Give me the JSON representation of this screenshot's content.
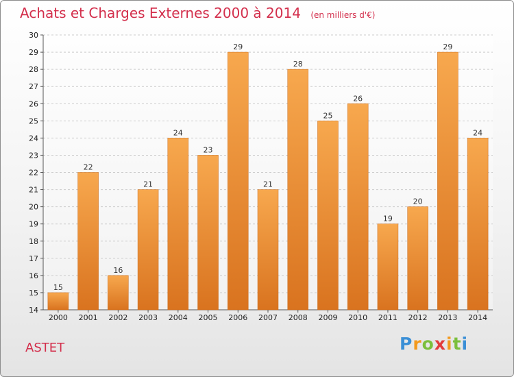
{
  "header": {
    "title": "Achats et Charges Externes 2000 à 2014",
    "subtitle": "(en milliers d'€)"
  },
  "footer": {
    "location": "ASTET",
    "logo": {
      "text": "Proxiti",
      "letters": [
        "P",
        "r",
        "o",
        "x",
        "i",
        "t",
        "i"
      ]
    }
  },
  "colors": {
    "title": "#d32f4c",
    "bar_light": "#f7a84e",
    "bar_dark": "#d9731f",
    "grid": "#cccccc"
  },
  "chart_data": {
    "type": "bar",
    "title": "Achats et Charges Externes 2000 à 2014",
    "subtitle": "(en milliers d'€)",
    "xlabel": "",
    "ylabel": "",
    "categories": [
      "2000",
      "2001",
      "2002",
      "2003",
      "2004",
      "2005",
      "2006",
      "2007",
      "2008",
      "2009",
      "2010",
      "2011",
      "2012",
      "2013",
      "2014"
    ],
    "values": [
      15,
      22,
      16,
      21,
      24,
      23,
      29,
      21,
      28,
      25,
      26,
      19,
      20,
      29,
      24
    ],
    "ylim": [
      14,
      30
    ],
    "yticks": [
      14,
      15,
      16,
      17,
      18,
      19,
      20,
      21,
      22,
      23,
      24,
      25,
      26,
      27,
      28,
      29,
      30
    ],
    "grid": true,
    "data_labels": true
  }
}
